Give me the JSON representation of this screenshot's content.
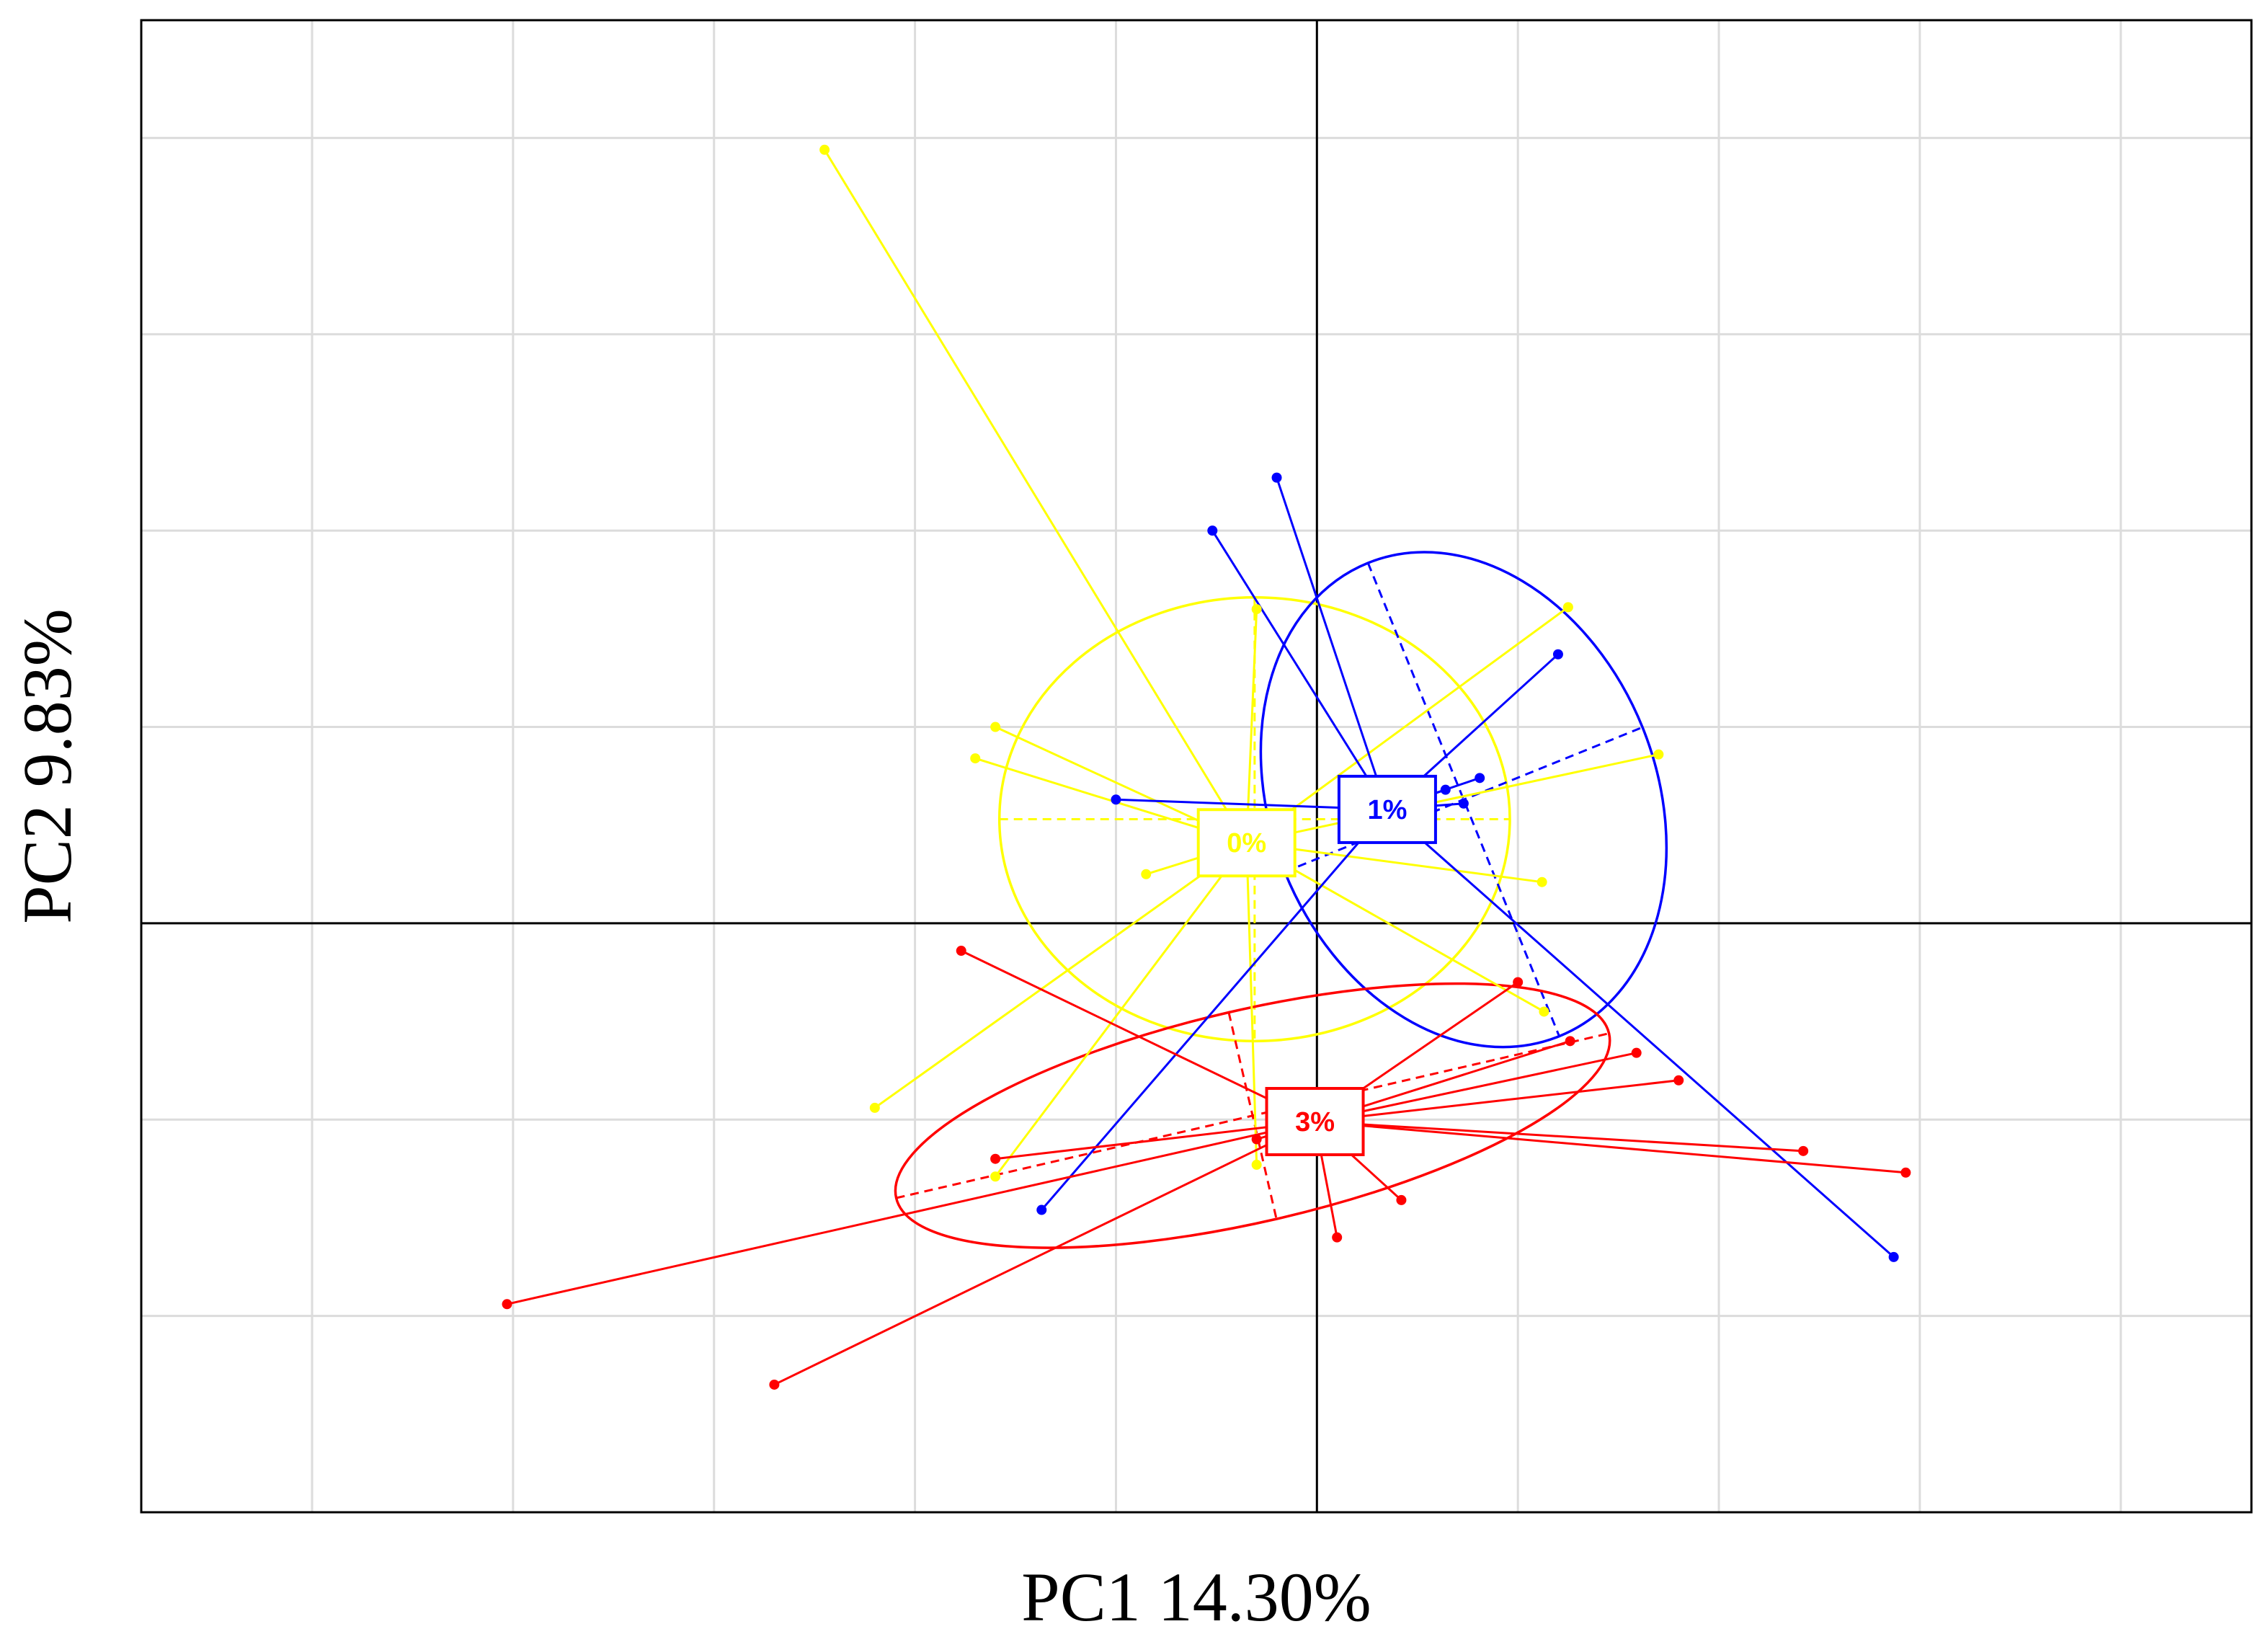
{
  "chart_data": {
    "type": "scatter",
    "title": "",
    "xlabel": "PC1 14.30%",
    "ylabel": "PC2 9.83%",
    "xlim": [
      -5.85,
      4.65
    ],
    "ylim": [
      -3.0,
      4.6
    ],
    "grid": true,
    "x_grid_values": [
      -5,
      -4,
      -3,
      -2,
      -1,
      0,
      1,
      2,
      3,
      4
    ],
    "y_grid_values": [
      -2,
      -1,
      0,
      1,
      2,
      3,
      4
    ],
    "reference_lines": {
      "x": 0,
      "y": 0
    },
    "ellipse_coverage": 0.67,
    "series": [
      {
        "name": "0%",
        "color": "#FFFF00",
        "centroid": [
          -0.35,
          0.41
        ],
        "ellipse": {
          "cx": -0.31,
          "cy": 0.53,
          "rx": 1.27,
          "ry": 1.13,
          "angle_deg": 0
        },
        "points": [
          [
            -2.45,
            3.94
          ],
          [
            -1.7,
            0.84
          ],
          [
            -2.2,
            -0.94
          ],
          [
            -1.6,
            -1.29
          ],
          [
            -0.3,
            -1.23
          ],
          [
            1.25,
            1.61
          ],
          [
            1.7,
            0.86
          ],
          [
            1.12,
            0.21
          ],
          [
            1.13,
            -0.45
          ],
          [
            -0.5,
            0.5
          ],
          [
            -0.85,
            0.25
          ],
          [
            -1.6,
            1.0
          ],
          [
            -0.3,
            1.6
          ]
        ]
      },
      {
        "name": "1%",
        "color": "#0000FF",
        "centroid": [
          0.35,
          0.58
        ],
        "ellipse": {
          "cx": 0.73,
          "cy": 0.63,
          "rx": 0.96,
          "ry": 1.3,
          "angle_deg": -22
        },
        "points": [
          [
            -0.2,
            2.27
          ],
          [
            -0.52,
            2.0
          ],
          [
            1.2,
            1.37
          ],
          [
            0.81,
            0.74
          ],
          [
            0.64,
            0.68
          ],
          [
            0.73,
            0.61
          ],
          [
            -1.0,
            0.63
          ],
          [
            -1.37,
            -1.46
          ],
          [
            2.87,
            -1.7
          ]
        ]
      },
      {
        "name": "3%",
        "color": "#FF0000",
        "centroid": [
          -0.01,
          -1.01
        ],
        "ellipse": {
          "cx": -0.32,
          "cy": -0.98,
          "rx": 1.82,
          "ry": 0.54,
          "angle_deg": -13
        },
        "points": [
          [
            -1.77,
            -0.14
          ],
          [
            -4.03,
            -1.94
          ],
          [
            -2.7,
            -2.35
          ],
          [
            0.42,
            -1.41
          ],
          [
            1.26,
            -0.6
          ],
          [
            1.59,
            -0.66
          ],
          [
            2.42,
            -1.16
          ],
          [
            2.93,
            -1.27
          ],
          [
            1.0,
            -0.3
          ],
          [
            -1.6,
            -1.2
          ],
          [
            -0.3,
            -1.1
          ],
          [
            1.8,
            -0.8
          ],
          [
            0.1,
            -1.6
          ]
        ]
      }
    ]
  }
}
